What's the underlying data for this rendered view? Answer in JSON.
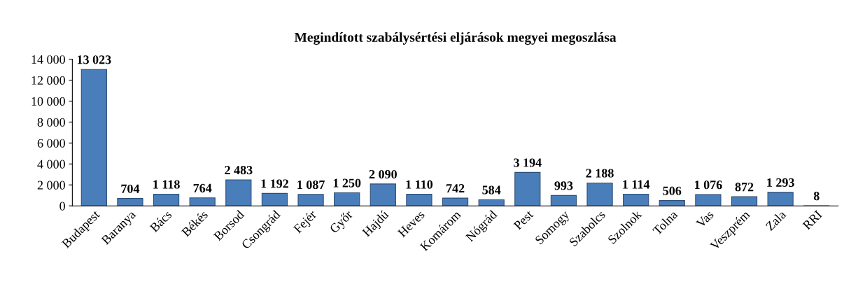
{
  "chart_data": {
    "type": "bar",
    "title": "Megindított szabálysértési eljárások megyei megoszlása",
    "categories": [
      "Budapest",
      "Baranya",
      "Bács",
      "Békés",
      "Borsod",
      "Csongrád",
      "Fejér",
      "Győr",
      "Hajdú",
      "Heves",
      "Komárom",
      "Nógrád",
      "Pest",
      "Somogy",
      "Szabolcs",
      "Szolnok",
      "Tolna",
      "Vas",
      "Veszprém",
      "Zala",
      "RRI"
    ],
    "values": [
      13023,
      704,
      1118,
      764,
      2483,
      1192,
      1087,
      1250,
      2090,
      1110,
      742,
      584,
      3194,
      993,
      2188,
      1114,
      506,
      1076,
      872,
      1293,
      8
    ],
    "value_labels": [
      "13 023",
      "704",
      "1 118",
      "764",
      "2 483",
      "1 192",
      "1 087",
      "1 250",
      "2 090",
      "1 110",
      "742",
      "584",
      "3 194",
      "993",
      "2 188",
      "1 114",
      "506",
      "1 076",
      "872",
      "1 293",
      "8"
    ],
    "color": "#4a7ebb",
    "ylim": [
      0,
      14000
    ],
    "yticks": [
      {
        "value": 0,
        "label": "0"
      },
      {
        "value": 2000,
        "label": "2 000"
      },
      {
        "value": 4000,
        "label": "4 000"
      },
      {
        "value": 6000,
        "label": "6 000"
      },
      {
        "value": 8000,
        "label": "8 000"
      },
      {
        "value": 10000,
        "label": "10 000"
      },
      {
        "value": 12000,
        "label": "12 000"
      },
      {
        "value": 14000,
        "label": "14 000"
      }
    ],
    "grid": false
  }
}
